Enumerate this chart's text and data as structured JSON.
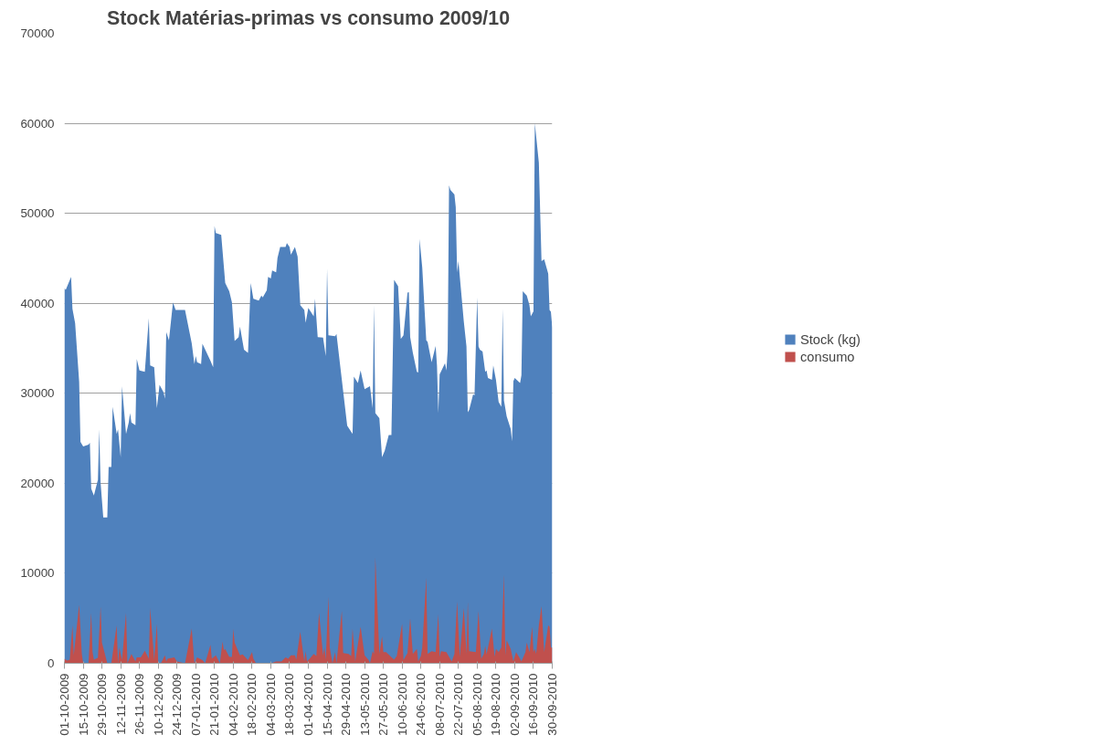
{
  "chart_data": {
    "type": "area",
    "title": "Stock Matérias-primas vs consumo 2009/10",
    "xlim": [
      "2009-10-01",
      "2010-09-30"
    ],
    "xticks": [
      {
        "value": "2009-10-01",
        "label": "01-10-2009"
      },
      {
        "value": "2009-10-15",
        "label": "15-10-2009"
      },
      {
        "value": "2009-10-29",
        "label": "29-10-2009"
      },
      {
        "value": "2009-11-12",
        "label": "12-11-2009"
      },
      {
        "value": "2009-11-26",
        "label": "26-11-2009"
      },
      {
        "value": "2009-12-10",
        "label": "10-12-2009"
      },
      {
        "value": "2009-12-24",
        "label": "24-12-2009"
      },
      {
        "value": "2010-01-07",
        "label": "07-01-2010"
      },
      {
        "value": "2010-01-21",
        "label": "21-01-2010"
      },
      {
        "value": "2010-02-04",
        "label": "04-02-2010"
      },
      {
        "value": "2010-02-18",
        "label": "18-02-2010"
      },
      {
        "value": "2010-03-04",
        "label": "04-03-2010"
      },
      {
        "value": "2010-03-18",
        "label": "18-03-2010"
      },
      {
        "value": "2010-04-01",
        "label": "01-04-2010"
      },
      {
        "value": "2010-04-15",
        "label": "15-04-2010"
      },
      {
        "value": "2010-04-29",
        "label": "29-04-2010"
      },
      {
        "value": "2010-05-13",
        "label": "13-05-2010"
      },
      {
        "value": "2010-05-27",
        "label": "27-05-2010"
      },
      {
        "value": "2010-06-10",
        "label": "10-06-2010"
      },
      {
        "value": "2010-06-24",
        "label": "24-06-2010"
      },
      {
        "value": "2010-07-08",
        "label": "08-07-2010"
      },
      {
        "value": "2010-07-22",
        "label": "22-07-2010"
      },
      {
        "value": "2010-08-05",
        "label": "05-08-2010"
      },
      {
        "value": "2010-08-19",
        "label": "19-08-2010"
      },
      {
        "value": "2010-09-02",
        "label": "02-09-2010"
      },
      {
        "value": "2010-09-16",
        "label": "16-09-2010"
      },
      {
        "value": "2010-09-30",
        "label": "30-09-2010"
      }
    ],
    "ylim": [
      0,
      70000
    ],
    "yticks": [
      0,
      10000,
      20000,
      30000,
      40000,
      50000,
      60000,
      70000
    ],
    "grid": "y",
    "legend": "right",
    "series": [
      {
        "name": "Stock (kg)",
        "color": "#4f81bd",
        "x": [
          "2009-10-01",
          "2009-10-02",
          "2009-10-06",
          "2009-10-07",
          "2009-10-09",
          "2009-10-12",
          "2009-10-13",
          "2009-10-15",
          "2009-10-19",
          "2009-10-20",
          "2009-10-21",
          "2009-10-23",
          "2009-10-26",
          "2009-10-27",
          "2009-10-28",
          "2009-10-30",
          "2009-11-02",
          "2009-11-03",
          "2009-11-05",
          "2009-11-06",
          "2009-11-09",
          "2009-11-10",
          "2009-11-12",
          "2009-11-13",
          "2009-11-16",
          "2009-11-18",
          "2009-11-19",
          "2009-11-20",
          "2009-11-23",
          "2009-11-24",
          "2009-11-26",
          "2009-11-30",
          "2009-12-03",
          "2009-12-04",
          "2009-12-07",
          "2009-12-09",
          "2009-12-11",
          "2009-12-14",
          "2009-12-15",
          "2009-12-16",
          "2009-12-18",
          "2009-12-21",
          "2009-12-23",
          "2009-12-30",
          "2010-01-04",
          "2010-01-06",
          "2010-01-07",
          "2010-01-08",
          "2010-01-11",
          "2010-01-12",
          "2010-01-18",
          "2010-01-20",
          "2010-01-21",
          "2010-01-22",
          "2010-01-26",
          "2010-01-29",
          "2010-02-01",
          "2010-02-03",
          "2010-02-05",
          "2010-02-08",
          "2010-02-09",
          "2010-02-12",
          "2010-02-15",
          "2010-02-17",
          "2010-02-19",
          "2010-02-23",
          "2010-02-25",
          "2010-02-26",
          "2010-03-01",
          "2010-03-02",
          "2010-03-04",
          "2010-03-05",
          "2010-03-08",
          "2010-03-09",
          "2010-03-11",
          "2010-03-15",
          "2010-03-16",
          "2010-03-18",
          "2010-03-19",
          "2010-03-22",
          "2010-03-24",
          "2010-03-26",
          "2010-03-29",
          "2010-03-30",
          "2010-04-01",
          "2010-04-05",
          "2010-04-06",
          "2010-04-08",
          "2010-04-12",
          "2010-04-14",
          "2010-04-15",
          "2010-04-16",
          "2010-04-21",
          "2010-04-22",
          "2010-04-30",
          "2010-05-04",
          "2010-05-05",
          "2010-05-08",
          "2010-05-10",
          "2010-05-13",
          "2010-05-17",
          "2010-05-19",
          "2010-05-20",
          "2010-05-21",
          "2010-05-24",
          "2010-05-26",
          "2010-05-28",
          "2010-05-31",
          "2010-06-02",
          "2010-06-04",
          "2010-06-07",
          "2010-06-09",
          "2010-06-11",
          "2010-06-14",
          "2010-06-15",
          "2010-06-16",
          "2010-06-18",
          "2010-06-21",
          "2010-06-22",
          "2010-06-23",
          "2010-06-25",
          "2010-06-28",
          "2010-06-29",
          "2010-07-02",
          "2010-07-05",
          "2010-07-06",
          "2010-07-07",
          "2010-07-08",
          "2010-07-12",
          "2010-07-13",
          "2010-07-14",
          "2010-07-15",
          "2010-07-16",
          "2010-07-19",
          "2010-07-20",
          "2010-07-21",
          "2010-07-22",
          "2010-07-26",
          "2010-07-28",
          "2010-07-29",
          "2010-07-30",
          "2010-08-02",
          "2010-08-03",
          "2010-08-05",
          "2010-08-06",
          "2010-08-07",
          "2010-08-09",
          "2010-08-11",
          "2010-08-12",
          "2010-08-13",
          "2010-08-16",
          "2010-08-17",
          "2010-08-19",
          "2010-08-21",
          "2010-08-23",
          "2010-08-24",
          "2010-08-25",
          "2010-08-27",
          "2010-08-30",
          "2010-08-31",
          "2010-09-01",
          "2010-09-02",
          "2010-09-06",
          "2010-09-07",
          "2010-09-08",
          "2010-09-11",
          "2010-09-13",
          "2010-09-14",
          "2010-09-16",
          "2010-09-17",
          "2010-09-20",
          "2010-09-22",
          "2010-09-24",
          "2010-09-27",
          "2010-09-28",
          "2010-09-29",
          "2010-09-30"
        ],
        "values": [
          41700,
          41500,
          42950,
          39400,
          37800,
          31300,
          24600,
          24100,
          24300,
          24500,
          19400,
          18650,
          20400,
          26000,
          20050,
          16200,
          16200,
          21800,
          21800,
          28500,
          25500,
          26000,
          22900,
          30800,
          25500,
          26750,
          27800,
          26750,
          26450,
          33800,
          32550,
          32400,
          38350,
          33100,
          32900,
          28350,
          30950,
          30100,
          29400,
          36800,
          35900,
          40100,
          39250,
          39250,
          35550,
          33250,
          34150,
          33450,
          33250,
          35500,
          33600,
          32900,
          48600,
          47800,
          47600,
          42250,
          41350,
          40100,
          35800,
          36250,
          37400,
          34850,
          34500,
          42250,
          40500,
          40300,
          40850,
          40650,
          41450,
          42950,
          42750,
          43650,
          43450,
          45050,
          46250,
          46250,
          46700,
          46250,
          45400,
          46250,
          45200,
          39800,
          39250,
          37850,
          39500,
          38550,
          40500,
          36250,
          36200,
          34150,
          43850,
          36450,
          36350,
          36600,
          26400,
          25500,
          31850,
          31150,
          32550,
          30450,
          30800,
          28350,
          39800,
          27800,
          27250,
          22900,
          23600,
          25350,
          25350,
          42600,
          41900,
          36050,
          36450,
          41200,
          41250,
          36250,
          34500,
          32400,
          32300,
          47150,
          44000,
          35900,
          35700,
          33450,
          35250,
          33100,
          27800,
          32100,
          33350,
          32550,
          34850,
          53100,
          52600,
          52100,
          50700,
          43450,
          44700,
          38000,
          35200,
          27900,
          28150,
          29900,
          29750,
          40650,
          35200,
          34850,
          34650,
          32400,
          32550,
          31700,
          31500,
          33100,
          31500,
          29050,
          28500,
          39400,
          29200,
          27450,
          26050,
          24650,
          31350,
          31700,
          31150,
          32000,
          41350,
          40850,
          39800,
          38550,
          39100,
          60000,
          55650,
          44700,
          44900,
          43300,
          39250,
          39050,
          37300
        ]
      },
      {
        "name": "consumo",
        "color": "#c0504d",
        "x": [
          "2009-10-01",
          "2009-10-03",
          "2009-10-05",
          "2009-10-07",
          "2009-10-08",
          "2009-10-12",
          "2009-10-14",
          "2009-10-15",
          "2009-10-19",
          "2009-10-21",
          "2009-10-22",
          "2009-10-23",
          "2009-10-26",
          "2009-10-28",
          "2009-10-29",
          "2009-11-02",
          "2009-11-05",
          "2009-11-09",
          "2009-11-10",
          "2009-11-11",
          "2009-11-13",
          "2009-11-16",
          "2009-11-17",
          "2009-11-20",
          "2009-11-23",
          "2009-11-24",
          "2009-11-27",
          "2009-11-30",
          "2009-12-03",
          "2009-12-04",
          "2009-12-07",
          "2009-12-09",
          "2009-12-10",
          "2009-12-12",
          "2009-12-15",
          "2009-12-16",
          "2009-12-17",
          "2009-12-22",
          "2009-12-24",
          "2009-12-30",
          "2010-01-04",
          "2010-01-06",
          "2010-01-08",
          "2010-01-12",
          "2010-01-14",
          "2010-01-18",
          "2010-01-19",
          "2010-01-22",
          "2010-01-25",
          "2010-01-27",
          "2010-01-28",
          "2010-01-29",
          "2010-02-01",
          "2010-02-03",
          "2010-02-04",
          "2010-02-05",
          "2010-02-09",
          "2010-02-11",
          "2010-02-15",
          "2010-02-18",
          "2010-02-19",
          "2010-02-21",
          "2010-03-04",
          "2010-03-08",
          "2010-03-12",
          "2010-03-15",
          "2010-03-17",
          "2010-03-19",
          "2010-03-22",
          "2010-03-23",
          "2010-03-26",
          "2010-03-29",
          "2010-03-30",
          "2010-03-31",
          "2010-04-02",
          "2010-04-05",
          "2010-04-07",
          "2010-04-09",
          "2010-04-12",
          "2010-04-13",
          "2010-04-14",
          "2010-04-16",
          "2010-04-17",
          "2010-04-19",
          "2010-04-21",
          "2010-04-22",
          "2010-04-26",
          "2010-04-27",
          "2010-05-01",
          "2010-05-03",
          "2010-05-04",
          "2010-05-06",
          "2010-05-10",
          "2010-05-13",
          "2010-05-16",
          "2010-05-17",
          "2010-05-19",
          "2010-05-20",
          "2010-05-21",
          "2010-05-24",
          "2010-05-26",
          "2010-05-27",
          "2010-05-29",
          "2010-06-04",
          "2010-06-06",
          "2010-06-10",
          "2010-06-11",
          "2010-06-14",
          "2010-06-16",
          "2010-06-18",
          "2010-06-21",
          "2010-06-22",
          "2010-06-24",
          "2010-06-25",
          "2010-06-28",
          "2010-06-29",
          "2010-07-02",
          "2010-07-05",
          "2010-07-07",
          "2010-07-08",
          "2010-07-09",
          "2010-07-13",
          "2010-07-17",
          "2010-07-19",
          "2010-07-21",
          "2010-07-23",
          "2010-07-26",
          "2010-07-28",
          "2010-07-29",
          "2010-07-30",
          "2010-08-04",
          "2010-08-06",
          "2010-08-08",
          "2010-08-10",
          "2010-08-11",
          "2010-08-12",
          "2010-08-16",
          "2010-08-18",
          "2010-08-19",
          "2010-08-21",
          "2010-08-23",
          "2010-08-25",
          "2010-08-26",
          "2010-08-27",
          "2010-08-30",
          "2010-09-01",
          "2010-09-03",
          "2010-09-06",
          "2010-09-07",
          "2010-09-10",
          "2010-09-11",
          "2010-09-13",
          "2010-09-15",
          "2010-09-16",
          "2010-09-17",
          "2010-09-18",
          "2010-09-20",
          "2010-09-22",
          "2010-09-24",
          "2010-09-27",
          "2010-09-28",
          "2010-09-29",
          "2010-09-30"
        ],
        "values": [
          500,
          300,
          400,
          4200,
          900,
          6500,
          1050,
          0,
          0,
          5600,
          1250,
          400,
          600,
          6300,
          2300,
          0,
          0,
          4200,
          0,
          1750,
          350,
          5600,
          0,
          1050,
          200,
          650,
          650,
          1400,
          500,
          6150,
          350,
          4400,
          0,
          0,
          900,
          200,
          500,
          650,
          200,
          0,
          3850,
          0,
          650,
          350,
          0,
          2050,
          500,
          900,
          0,
          2400,
          1450,
          1600,
          700,
          700,
          3850,
          2300,
          900,
          1000,
          350,
          1250,
          500,
          0,
          0,
          200,
          200,
          650,
          500,
          900,
          900,
          400,
          3500,
          200,
          1350,
          200,
          500,
          1050,
          800,
          5600,
          900,
          1750,
          400,
          7400,
          1750,
          0,
          1250,
          0,
          5800,
          1150,
          1050,
          800,
          3850,
          200,
          4050,
          900,
          350,
          0,
          1350,
          1050,
          11800,
          1050,
          3000,
          1250,
          1250,
          400,
          800,
          4400,
          350,
          1150,
          5000,
          1050,
          1600,
          200,
          800,
          1750,
          9500,
          1050,
          1350,
          1250,
          5450,
          700,
          1350,
          1250,
          200,
          1050,
          6850,
          700,
          6150,
          1050,
          6850,
          1350,
          1250,
          5800,
          500,
          1050,
          1950,
          1000,
          3850,
          700,
          1600,
          1250,
          1750,
          9850,
          900,
          2550,
          1600,
          200,
          1250,
          500,
          200,
          1250,
          2300,
          1250,
          4050,
          1250,
          1600,
          1050,
          4200,
          6350,
          1250,
          4200,
          4050,
          1750,
          1750
        ]
      }
    ]
  }
}
